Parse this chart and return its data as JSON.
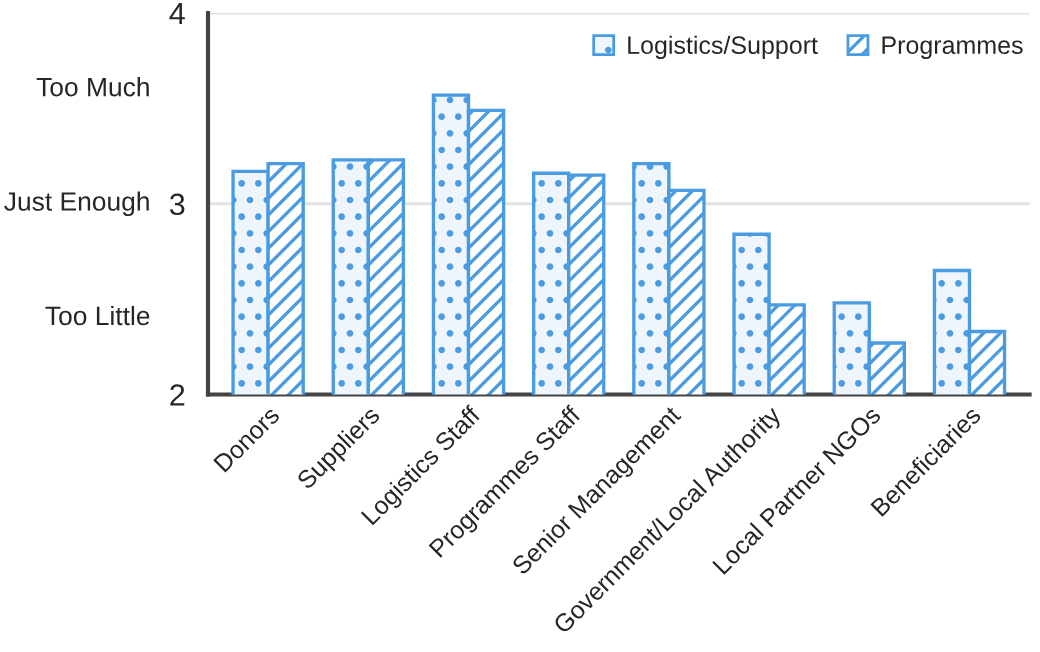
{
  "chart_data": {
    "type": "bar",
    "categories": [
      "Donors",
      "Suppliers",
      "Logistics Staff",
      "Programmes Staff",
      "Senior Management",
      "Government/Local Authority",
      "Local Partner NGOs",
      "Beneficiaries"
    ],
    "series": [
      {
        "name": "Logistics/Support",
        "color": "#4a9be0",
        "values": [
          3.17,
          3.23,
          3.57,
          3.16,
          3.21,
          2.84,
          2.48,
          2.65
        ]
      },
      {
        "name": "Programmes",
        "color": "#4a9be0",
        "values": [
          3.21,
          3.23,
          3.49,
          3.15,
          3.07,
          2.47,
          2.27,
          2.33
        ]
      }
    ],
    "ylim": [
      2,
      4
    ],
    "yticks": [
      2,
      3,
      4
    ],
    "grid": "y",
    "legend": "top right",
    "annotations": [
      "Too Much",
      "Just Enough",
      "Too Little"
    ]
  }
}
